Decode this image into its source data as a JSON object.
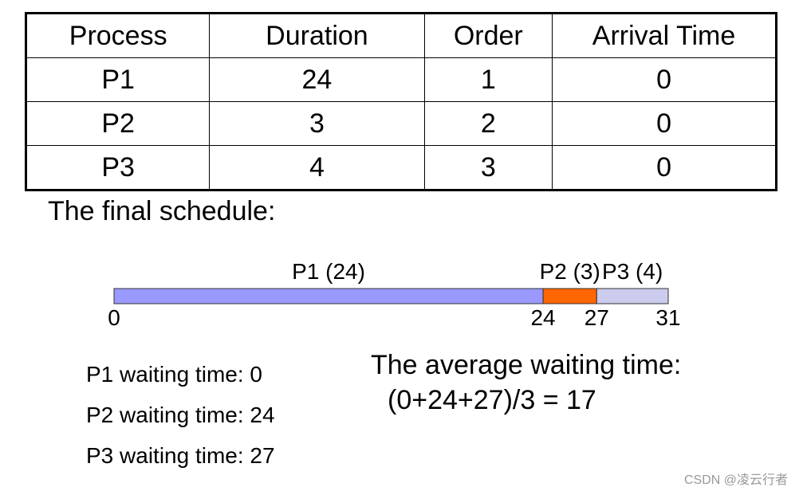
{
  "table": {
    "header": [
      "Process",
      "Duration",
      "Order",
      "Arrival Time"
    ],
    "rows": [
      [
        "P1",
        24,
        1,
        0
      ],
      [
        "P2",
        3,
        2,
        0
      ],
      [
        "P3",
        4,
        3,
        0
      ]
    ]
  },
  "schedule_title": "The final schedule:",
  "gantt": {
    "segments": [
      {
        "label": "P1 (24)",
        "color": "#9999ff"
      },
      {
        "label": "P2 (3)",
        "color": "#ff6600"
      },
      {
        "label": "P3 (4)",
        "color": "#ccccee"
      }
    ],
    "ticks": [
      0,
      24,
      27,
      31
    ]
  },
  "waiting": [
    "P1 waiting time: 0",
    "P2 waiting time: 24",
    "P3 waiting time: 27"
  ],
  "average": {
    "title": "The average waiting time:",
    "formula": "(0+24+27)/3 = 17"
  },
  "watermark": "CSDN @凌云行者"
}
